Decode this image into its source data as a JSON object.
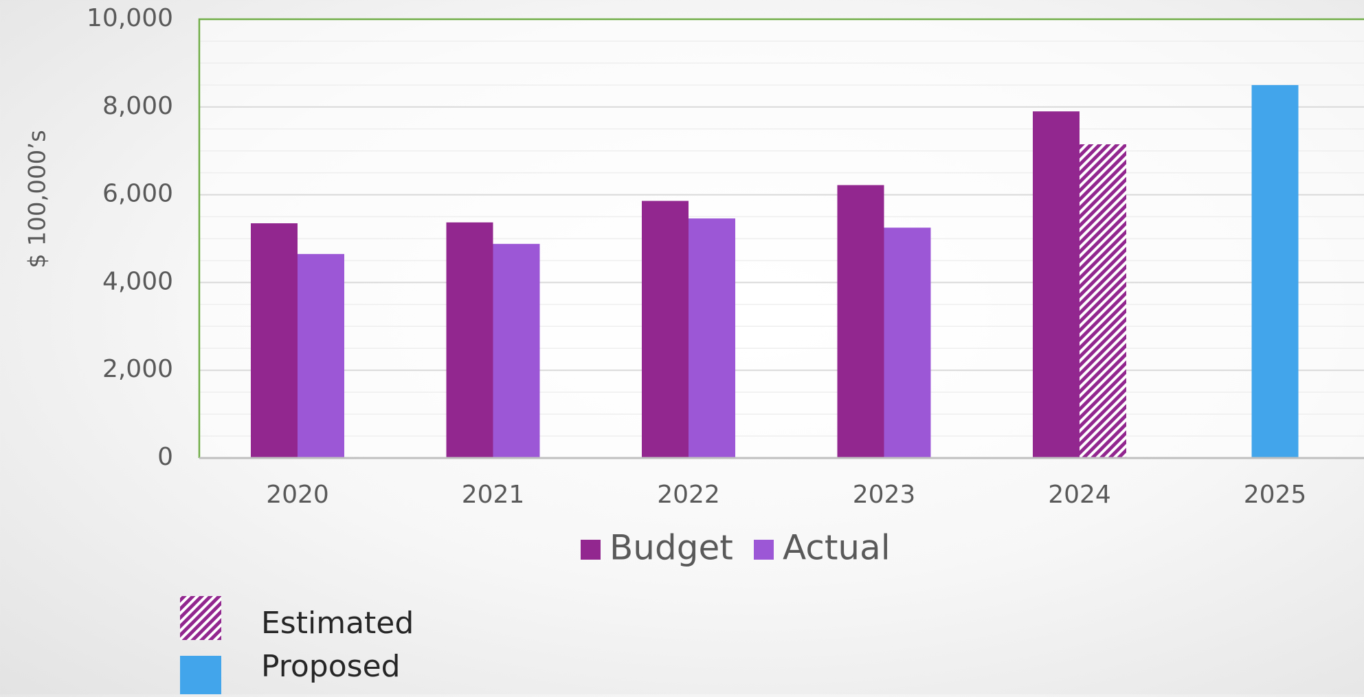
{
  "chart_data": {
    "type": "bar",
    "ylabel": "$ 100,000’s",
    "xlabel": "",
    "ylim": [
      0,
      10000
    ],
    "yticks": [
      0,
      2000,
      4000,
      6000,
      8000,
      10000
    ],
    "ytick_labels": [
      "0",
      "2,000",
      "4,000",
      "6,000",
      "8,000",
      "10,000"
    ],
    "categories": [
      "2020",
      "2021",
      "2022",
      "2023",
      "2024",
      "2025"
    ],
    "series": [
      {
        "name": "Budget",
        "color": "#92278f",
        "values": [
          5350,
          5370,
          5860,
          6220,
          7900,
          null
        ]
      },
      {
        "name": "Actual",
        "color": "#9c57d6",
        "values": [
          4650,
          4880,
          5460,
          5250,
          7150,
          null
        ]
      }
    ],
    "special_bars": [
      {
        "category": "2024",
        "series": "Actual",
        "style": "hatched",
        "note": "Estimated"
      },
      {
        "category": "2025",
        "value": 8500,
        "style": "solid",
        "color": "#42a5eb",
        "note": "Proposed"
      }
    ],
    "grid": true,
    "legend": {
      "position": "bottom-center",
      "entries": [
        "Budget",
        "Actual"
      ]
    },
    "notes_legend": [
      {
        "label": "Estimated",
        "style": "hatched",
        "color": "#92278f"
      },
      {
        "label": "Proposed",
        "style": "solid",
        "color": "#42a5eb"
      }
    ],
    "plot_border_color": "#70ad47"
  }
}
